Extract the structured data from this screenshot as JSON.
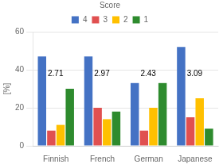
{
  "chart_data": {
    "type": "bar",
    "categories": [
      "Finnish",
      "French",
      "German",
      "Japanese"
    ],
    "series": [
      {
        "name": "4",
        "color": "#4472C4",
        "values": [
          47,
          47,
          33,
          52
        ]
      },
      {
        "name": "3",
        "color": "#E05050",
        "values": [
          8,
          20,
          8,
          15
        ]
      },
      {
        "name": "2",
        "color": "#FFC000",
        "values": [
          11,
          14,
          20,
          25
        ]
      },
      {
        "name": "1",
        "color": "#2E8B2E",
        "values": [
          30,
          18,
          33,
          9
        ]
      }
    ],
    "ylabel": "[%]",
    "ylim": [
      0,
      60
    ],
    "yticks": [
      0,
      20,
      40,
      60
    ],
    "grid": true,
    "legend": "top",
    "legend_title": "Score",
    "annotations": [
      "2.71",
      "2.97",
      "2.43",
      "3.09"
    ]
  }
}
